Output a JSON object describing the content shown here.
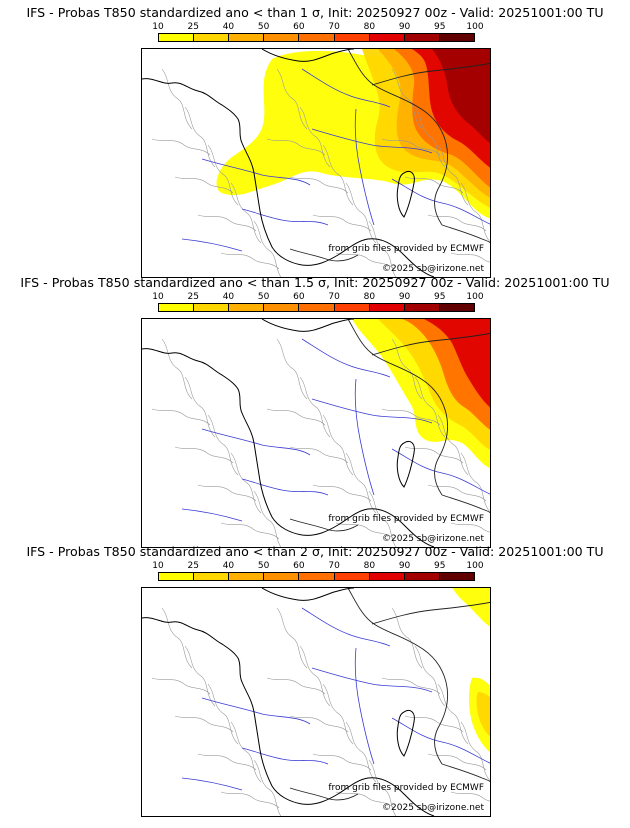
{
  "colorbar": {
    "ticks": [
      "10",
      "25",
      "40",
      "50",
      "60",
      "70",
      "80",
      "90",
      "95",
      "100"
    ],
    "colors": [
      "#ffff00",
      "#ffd700",
      "#ffb000",
      "#ff9000",
      "#ff7000",
      "#ff4000",
      "#e00000",
      "#a00000",
      "#600000"
    ]
  },
  "panels": [
    {
      "title": "IFS - Probas T850  standardized ano < than 1 σ, Init: 20250927 00z - Valid: 20251001:00 TU",
      "credit_source": "from grib files provided by ECMWF",
      "credit_copyright": "©2025 sb@irizone.net",
      "intensity": "high"
    },
    {
      "title": "IFS - Probas T850  standardized ano < than 1.5 σ, Init: 20250927 00z - Valid: 20251001:00 TU",
      "credit_source": "from grib files provided by ECMWF",
      "credit_copyright": "©2025 sb@irizone.net",
      "intensity": "medium"
    },
    {
      "title": "IFS - Probas T850  standardized ano < than 2 σ, Init: 20250927 00z - Valid: 20251001:00 TU",
      "credit_source": "from grib files provided by ECMWF",
      "credit_copyright": "©2025 sb@irizone.net",
      "intensity": "low"
    }
  ]
}
